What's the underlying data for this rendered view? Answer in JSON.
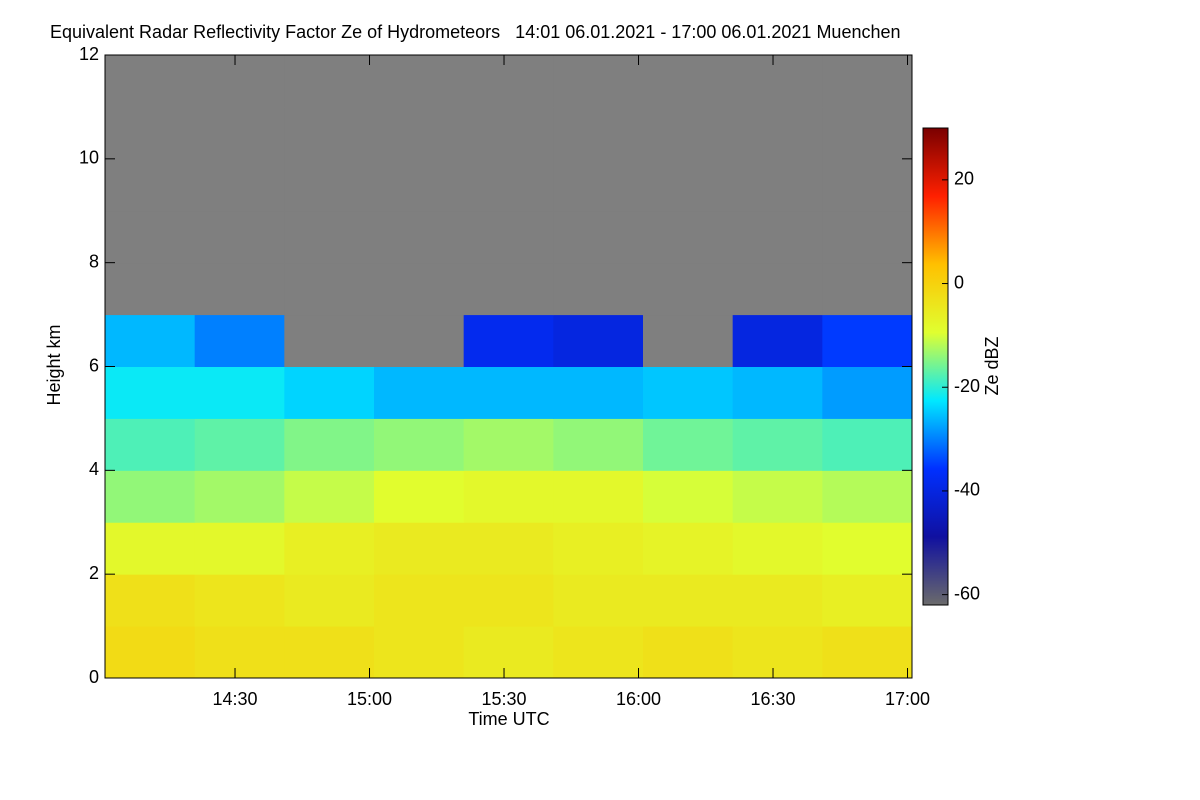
{
  "chart_data": {
    "type": "heatmap",
    "title": "Equivalent Radar Reflectivity Factor Ze of Hydrometeors   14:01 06.01.2021 - 17:00 06.01.2021 Muenchen",
    "xlabel": "Time UTC",
    "ylabel": "Height km",
    "colorbar_label": "Ze dBZ",
    "xlim": [
      841,
      1021
    ],
    "xticks": [
      {
        "value": 870,
        "label": "14:30"
      },
      {
        "value": 900,
        "label": "15:00"
      },
      {
        "value": 930,
        "label": "15:30"
      },
      {
        "value": 960,
        "label": "16:00"
      },
      {
        "value": 990,
        "label": "16:30"
      },
      {
        "value": 1020,
        "label": "17:00"
      }
    ],
    "ylim": [
      0,
      12
    ],
    "yticks": [
      0,
      2,
      4,
      6,
      8,
      10,
      12
    ],
    "zlim": [
      -62,
      30
    ],
    "zticks": [
      -60,
      -40,
      -20,
      0,
      20
    ],
    "colormap": [
      "#6b6b6b",
      "#1010a0",
      "#0030ff",
      "#00e8ff",
      "#e0ff30",
      "#ffc000",
      "#ff2000",
      "#7a0000"
    ],
    "nodata_color": "#7f7f7f",
    "xbins": [
      841,
      861,
      881,
      901,
      921,
      941,
      961,
      981,
      1001,
      1021
    ],
    "ybins": [
      0,
      1,
      2,
      3,
      4,
      5,
      6,
      7,
      8,
      9,
      10,
      11,
      12
    ],
    "z": [
      [
        -2,
        -3,
        -3,
        -4,
        -5,
        -4,
        -3,
        -4,
        -3
      ],
      [
        -3,
        -4,
        -5,
        -4,
        -4,
        -5,
        -5,
        -5,
        -6
      ],
      [
        -8,
        -8,
        -6,
        -5,
        -5,
        -6,
        -7,
        -8,
        -9
      ],
      [
        -14,
        -13,
        -11,
        -9,
        -8,
        -8,
        -10,
        -11,
        -12
      ],
      [
        -18,
        -17,
        -15,
        -14,
        -13,
        -14,
        -16,
        -17,
        -18
      ],
      [
        -22,
        -22,
        -24,
        -26,
        -26,
        -26,
        -25,
        -26,
        -28
      ],
      [
        -26,
        -30,
        null,
        null,
        -38,
        -40,
        null,
        -40,
        -35
      ],
      [
        null,
        null,
        null,
        null,
        null,
        null,
        null,
        null,
        null
      ],
      [
        null,
        null,
        null,
        null,
        null,
        null,
        null,
        null,
        null
      ],
      [
        null,
        null,
        null,
        null,
        null,
        null,
        null,
        null,
        null
      ],
      [
        null,
        null,
        null,
        null,
        null,
        null,
        null,
        null,
        null
      ],
      [
        null,
        null,
        null,
        null,
        null,
        null,
        null,
        null,
        null
      ]
    ]
  }
}
